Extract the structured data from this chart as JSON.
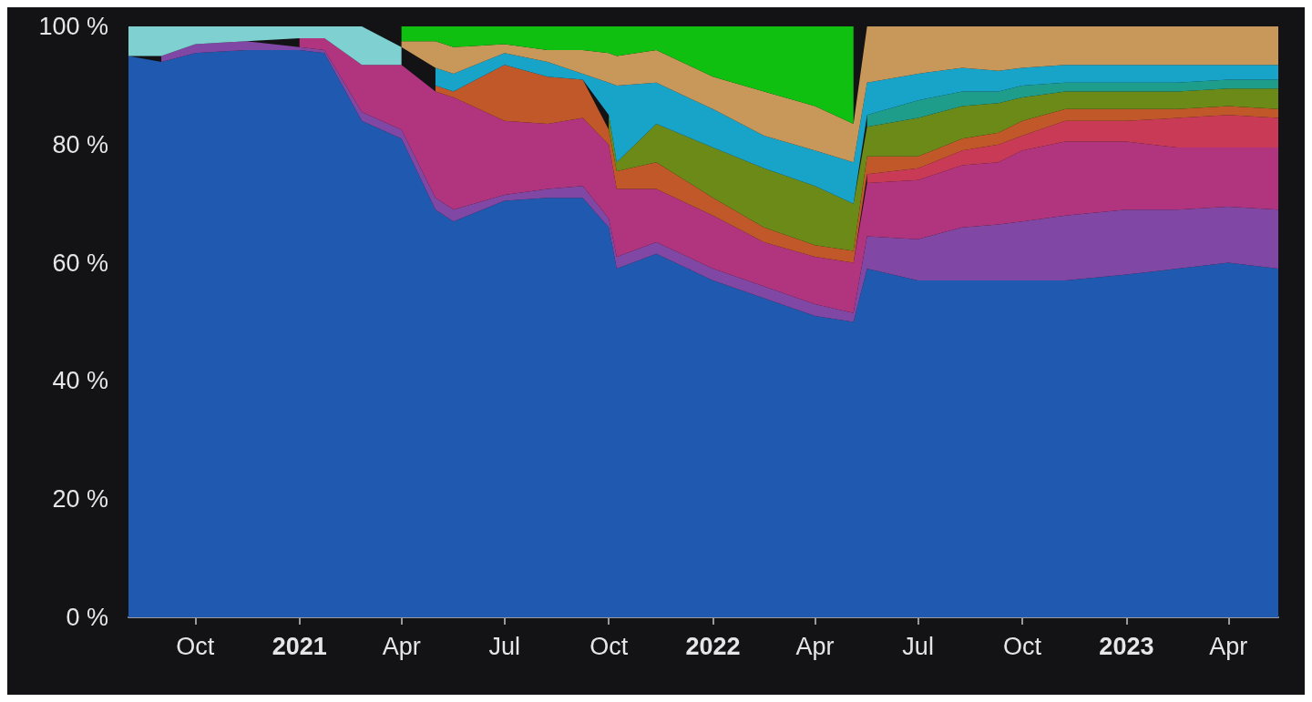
{
  "chart_data": {
    "type": "area",
    "stacked": true,
    "legend": false,
    "grid": false,
    "marker": "none",
    "x": [
      "2020-08-03",
      "2020-09-01",
      "2020-10-01",
      "2020-11-15",
      "2021-01-01",
      "2021-01-23",
      "2021-02-25",
      "2021-04-01",
      "2021-05-01",
      "2021-05-17",
      "2021-07-01",
      "2021-08-08",
      "2021-09-08",
      "2021-10-01",
      "2021-10-08",
      "2021-11-12",
      "2022-01-01",
      "2022-02-15",
      "2022-04-01",
      "2022-05-05",
      "2022-05-17",
      "2022-07-01",
      "2022-08-09",
      "2022-09-10",
      "2022-10-01",
      "2022-11-08",
      "2023-01-01",
      "2023-02-15",
      "2023-04-01",
      "2023-05-15"
    ],
    "series": [
      {
        "color": "#2059b0",
        "values": [
          95,
          94,
          95.5,
          96,
          96,
          95.5,
          84,
          81,
          69,
          67,
          70.5,
          71,
          71,
          66,
          59,
          61.5,
          57,
          54,
          51,
          50,
          59,
          57,
          57,
          57,
          57,
          57,
          58,
          59,
          60,
          59
        ]
      },
      {
        "color": "#8048a4",
        "values": [
          null,
          1,
          1.5,
          1.5,
          0.5,
          0.5,
          1.5,
          1.5,
          2,
          2,
          1,
          1.5,
          2,
          1.5,
          2,
          2,
          2,
          2,
          2,
          1.5,
          5.5,
          7,
          9,
          9.5,
          10,
          11,
          11,
          10,
          9.5,
          10
        ]
      },
      {
        "color": "#b0357e",
        "values": [
          null,
          null,
          null,
          null,
          1.5,
          2,
          8,
          11,
          18,
          19,
          12.5,
          11,
          11.5,
          12.5,
          11.5,
          9,
          9,
          7.5,
          8,
          8.5,
          9,
          10,
          10.5,
          10.5,
          12,
          12.5,
          11.5,
          10.5,
          10,
          10.5
        ]
      },
      {
        "color": "#c83a55",
        "values": [
          null,
          null,
          null,
          null,
          null,
          null,
          null,
          null,
          null,
          null,
          null,
          null,
          null,
          null,
          null,
          null,
          null,
          null,
          null,
          null,
          1.5,
          2,
          2.5,
          3,
          2.5,
          3.5,
          3.5,
          5,
          5.5,
          5
        ]
      },
      {
        "color": "#c0582a",
        "values": [
          null,
          null,
          null,
          null,
          null,
          null,
          null,
          null,
          1,
          1,
          9.5,
          8,
          6.5,
          2.5,
          3,
          4.5,
          3,
          2.5,
          2,
          2,
          3,
          2,
          2,
          2,
          2.5,
          2,
          2,
          1.5,
          1.5,
          1.5
        ]
      },
      {
        "color": "#6b8a18",
        "values": [
          null,
          null,
          null,
          null,
          null,
          null,
          null,
          null,
          null,
          null,
          null,
          null,
          null,
          2.5,
          1.5,
          6.5,
          8.5,
          10,
          10,
          8,
          5,
          6.5,
          5.5,
          5,
          4,
          3,
          3,
          3,
          3,
          3.5
        ]
      },
      {
        "color": "#1e9e8a",
        "values": [
          null,
          null,
          null,
          null,
          null,
          null,
          null,
          null,
          null,
          null,
          null,
          null,
          null,
          null,
          null,
          null,
          null,
          null,
          null,
          null,
          2,
          3,
          2.5,
          2,
          2,
          1.5,
          1.5,
          1.5,
          1.5,
          1.5
        ]
      },
      {
        "color": "#18a3c8",
        "values": [
          null,
          null,
          null,
          null,
          null,
          null,
          null,
          null,
          3,
          3,
          2,
          2.5,
          1,
          5.5,
          13,
          7,
          6.5,
          5.5,
          6,
          7,
          5.5,
          4.5,
          4,
          3.5,
          3,
          3,
          3,
          3,
          2.5,
          2.5
        ]
      },
      {
        "color": "#7fd0d0",
        "values": [
          5,
          5,
          3,
          2.5,
          2,
          2,
          6.5,
          3,
          null,
          null,
          null,
          null,
          null,
          null,
          null,
          null,
          null,
          null,
          null,
          null,
          null,
          null,
          null,
          null,
          null,
          null,
          null,
          null,
          null,
          null
        ]
      },
      {
        "color": "#c8985a",
        "values": [
          null,
          null,
          null,
          null,
          null,
          null,
          null,
          1,
          4.5,
          4.5,
          1.5,
          2,
          4,
          5,
          5,
          5.5,
          5.5,
          7.5,
          7.5,
          6.5,
          9.5,
          8,
          7,
          7.5,
          7,
          6.5,
          6.5,
          6.5,
          6.5,
          6.5
        ]
      },
      {
        "color": "#10c010",
        "values": [
          null,
          null,
          null,
          null,
          null,
          null,
          null,
          2.5,
          2.5,
          3.5,
          3,
          4,
          4,
          4.5,
          5,
          4,
          8.5,
          11,
          13.5,
          16.5,
          null,
          null,
          null,
          null,
          null,
          null,
          null,
          null,
          null,
          null
        ]
      }
    ],
    "xlim": [
      "2020-08-03",
      "2023-05-15"
    ],
    "xticks": [
      {
        "value": "2020-10-01",
        "label": "Oct"
      },
      {
        "value": "2021-01-01",
        "label": "2021"
      },
      {
        "value": "2021-04-01",
        "label": "Apr"
      },
      {
        "value": "2021-07-01",
        "label": "Jul"
      },
      {
        "value": "2021-10-01",
        "label": "Oct"
      },
      {
        "value": "2022-01-01",
        "label": "2022"
      },
      {
        "value": "2022-04-01",
        "label": "Apr"
      },
      {
        "value": "2022-07-01",
        "label": "Jul"
      },
      {
        "value": "2022-10-01",
        "label": "Oct"
      },
      {
        "value": "2023-01-01",
        "label": "2023"
      },
      {
        "value": "2023-04-01",
        "label": "Apr"
      }
    ],
    "ylim": [
      0,
      100
    ],
    "yticks": [
      {
        "value": 0,
        "label": "0 %"
      },
      {
        "value": 20,
        "label": "20 %"
      },
      {
        "value": 40,
        "label": "40 %"
      },
      {
        "value": 60,
        "label": "60 %"
      },
      {
        "value": 80,
        "label": "80 %"
      },
      {
        "value": 100,
        "label": "100 %"
      }
    ]
  }
}
